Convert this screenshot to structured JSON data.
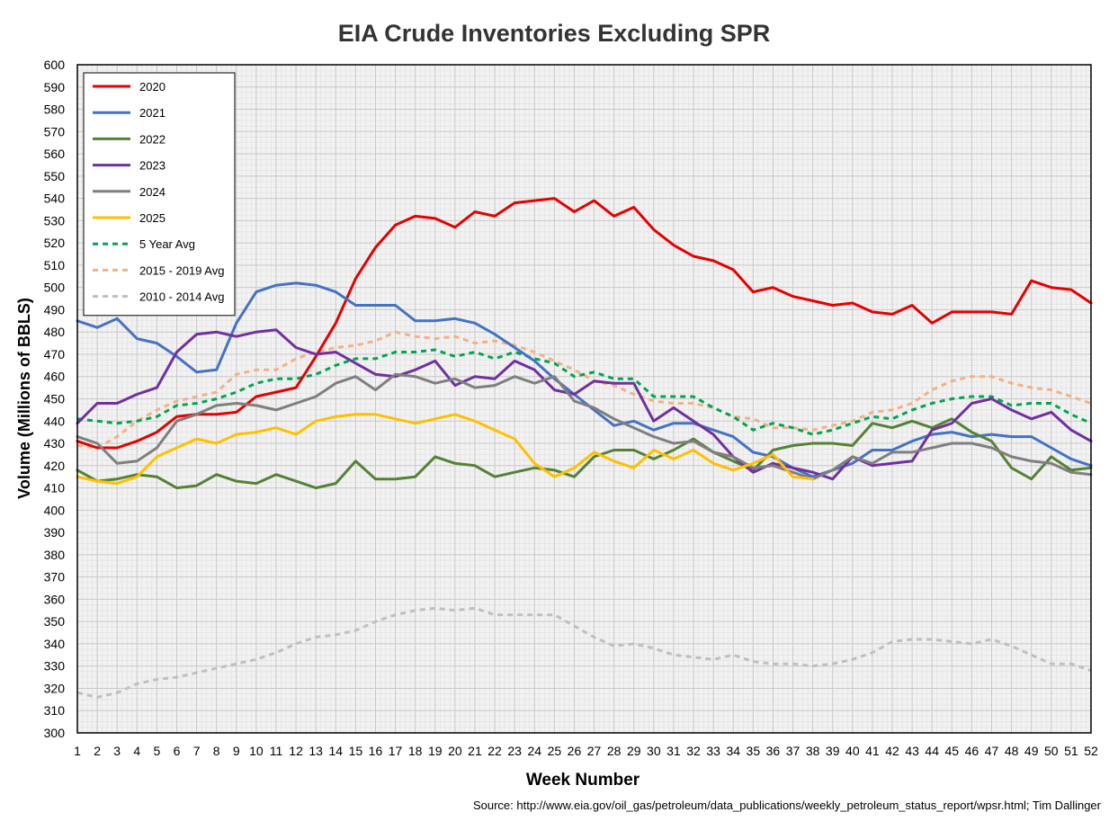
{
  "chart_data": {
    "type": "line",
    "title": "EIA Crude Inventories Excluding SPR",
    "xlabel": "Week Number",
    "ylabel": "Volume (Millions of BBLS)",
    "source": "Source: http://www.eia.gov/oil_gas/petroleum/data_publications/weekly_petroleum_status_report/wpsr.html; Tim Dallinger",
    "ylim": [
      300,
      600
    ],
    "ytick_step": 10,
    "x": [
      1,
      2,
      3,
      4,
      5,
      6,
      7,
      8,
      9,
      10,
      11,
      12,
      13,
      14,
      15,
      16,
      17,
      18,
      19,
      20,
      21,
      22,
      23,
      24,
      25,
      26,
      27,
      28,
      29,
      30,
      31,
      32,
      33,
      34,
      35,
      36,
      37,
      38,
      39,
      40,
      41,
      42,
      43,
      44,
      45,
      46,
      47,
      48,
      49,
      50,
      51,
      52
    ],
    "grid": true,
    "legend_position": "top-left",
    "series": [
      {
        "name": "2020",
        "color": "#e60000",
        "dash": "solid",
        "values": [
          431,
          428,
          428,
          431,
          435,
          442,
          443,
          443,
          444,
          451,
          453,
          455,
          469,
          484,
          504,
          518,
          528,
          532,
          531,
          527,
          534,
          532,
          538,
          539,
          540,
          534,
          539,
          532,
          536,
          526,
          519,
          514,
          512,
          508,
          498,
          500,
          496,
          494,
          492,
          493,
          489,
          488,
          492,
          484,
          489,
          489,
          489,
          488,
          503,
          500,
          499,
          493
        ]
      },
      {
        "name": "2021",
        "color": "#4472c4",
        "dash": "solid",
        "values": [
          485,
          482,
          486,
          477,
          475,
          469,
          462,
          463,
          484,
          498,
          501,
          502,
          501,
          498,
          492,
          492,
          492,
          485,
          485,
          486,
          484,
          479,
          473,
          467,
          459,
          452,
          445,
          438,
          440,
          436,
          439,
          439,
          436,
          433,
          426,
          424,
          419,
          415,
          418,
          421,
          427,
          427,
          431,
          434,
          435,
          433,
          434,
          433,
          433,
          428,
          423,
          420
        ]
      },
      {
        "name": "2022",
        "color": "#548235",
        "dash": "solid",
        "values": [
          418,
          413,
          414,
          416,
          415,
          410,
          411,
          416,
          413,
          412,
          416,
          413,
          410,
          412,
          422,
          414,
          414,
          415,
          424,
          421,
          420,
          415,
          417,
          419,
          418,
          415,
          424,
          427,
          427,
          423,
          427,
          432,
          426,
          422,
          418,
          427,
          429,
          430,
          430,
          429,
          439,
          437,
          440,
          437,
          441,
          435,
          431,
          419,
          414,
          424,
          418,
          419
        ]
      },
      {
        "name": "2023",
        "color": "#7030a0",
        "dash": "solid",
        "values": [
          439,
          448,
          448,
          452,
          455,
          471,
          479,
          480,
          478,
          480,
          481,
          473,
          470,
          471,
          466,
          461,
          460,
          463,
          467,
          456,
          460,
          459,
          467,
          463,
          454,
          452,
          458,
          457,
          457,
          440,
          446,
          440,
          434,
          424,
          417,
          421,
          419,
          417,
          414,
          424,
          420,
          421,
          422,
          436,
          439,
          448,
          450,
          445,
          441,
          444,
          436,
          431
        ]
      },
      {
        "name": "2024",
        "color": "#7f7f7f",
        "dash": "solid",
        "values": [
          433,
          430,
          421,
          422,
          428,
          440,
          443,
          447,
          448,
          447,
          445,
          448,
          451,
          457,
          460,
          454,
          461,
          460,
          457,
          459,
          455,
          456,
          460,
          457,
          460,
          449,
          446,
          441,
          437,
          433,
          430,
          431,
          426,
          424,
          419,
          420,
          417,
          414,
          418,
          424,
          421,
          426,
          426,
          428,
          430,
          430,
          428,
          424,
          422,
          421,
          417,
          416
        ]
      },
      {
        "name": "2025",
        "color": "#ffc000",
        "dash": "solid",
        "values": [
          415,
          413,
          412,
          415,
          424,
          428,
          432,
          430,
          434,
          435,
          437,
          434,
          440,
          442,
          443,
          443,
          441,
          439,
          441,
          443,
          440,
          436,
          432,
          421,
          415,
          419,
          426,
          422,
          419,
          427,
          423,
          427,
          421,
          418,
          421,
          425,
          415,
          414,
          null,
          null,
          null,
          null,
          null,
          null,
          null,
          null,
          null,
          null,
          null,
          null,
          null,
          null
        ]
      },
      {
        "name": "5 Year Avg",
        "color": "#00a550",
        "dash": "dashed",
        "values": [
          441,
          440,
          439,
          440,
          442,
          447,
          448,
          450,
          453,
          457,
          459,
          459,
          461,
          465,
          468,
          468,
          471,
          471,
          472,
          469,
          471,
          468,
          471,
          468,
          466,
          460,
          462,
          459,
          459,
          451,
          451,
          451,
          446,
          442,
          436,
          439,
          437,
          434,
          436,
          439,
          442,
          441,
          445,
          448,
          450,
          451,
          451,
          447,
          448,
          448,
          443,
          439
        ]
      },
      {
        "name": "2015 - 2019 Avg",
        "color": "#f4b183",
        "dash": "dashed",
        "values": [
          429,
          428,
          433,
          440,
          445,
          449,
          451,
          453,
          461,
          463,
          463,
          468,
          471,
          473,
          474,
          476,
          480,
          478,
          477,
          478,
          475,
          476,
          474,
          471,
          467,
          463,
          458,
          456,
          452,
          449,
          448,
          448,
          446,
          442,
          441,
          437,
          437,
          436,
          438,
          440,
          444,
          445,
          448,
          454,
          458,
          460,
          460,
          457,
          455,
          454,
          451,
          448
        ]
      },
      {
        "name": "2010 - 2014 Avg",
        "color": "#bfbfbf",
        "dash": "dashed",
        "values": [
          318,
          316,
          318,
          322,
          324,
          325,
          327,
          329,
          331,
          333,
          336,
          340,
          343,
          344,
          346,
          350,
          353,
          355,
          356,
          355,
          356,
          353,
          353,
          353,
          353,
          348,
          343,
          339,
          340,
          338,
          335,
          334,
          333,
          335,
          332,
          331,
          331,
          330,
          331,
          333,
          336,
          341,
          342,
          342,
          341,
          340,
          342,
          339,
          335,
          331,
          331,
          328
        ]
      }
    ]
  }
}
